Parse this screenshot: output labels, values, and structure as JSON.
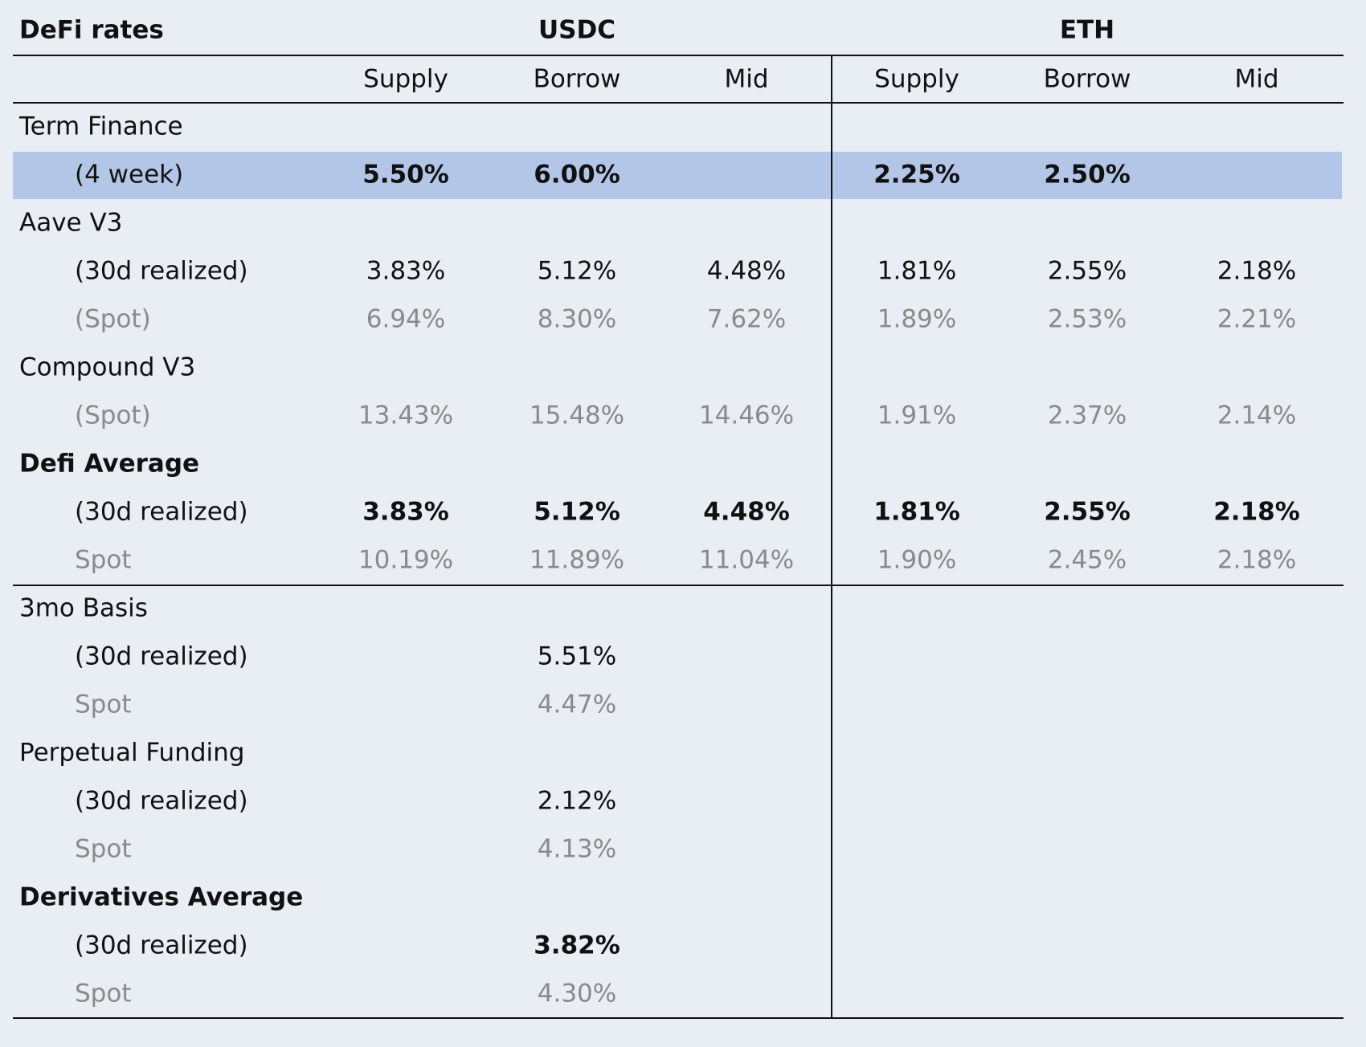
{
  "header": {
    "title": "DeFi rates",
    "groups": [
      "USDC",
      "ETH"
    ],
    "columns": [
      "Supply",
      "Borrow",
      "Mid",
      "Supply",
      "Borrow",
      "Mid"
    ]
  },
  "table": {
    "rows": [
      {
        "label": "Term Finance",
        "style": "heading",
        "cells": [
          null,
          null,
          null,
          null,
          null,
          null
        ]
      },
      {
        "label": "(4 week)",
        "style": "highlight",
        "cells": [
          "5.50%",
          "6.00%",
          null,
          "2.25%",
          "2.50%",
          null
        ]
      },
      {
        "label": "Aave V3",
        "style": "heading",
        "cells": [
          null,
          null,
          null,
          null,
          null,
          null
        ]
      },
      {
        "label": "(30d realized)",
        "style": "detail",
        "cells": [
          "3.83%",
          "5.12%",
          "4.48%",
          "1.81%",
          "2.55%",
          "2.18%"
        ]
      },
      {
        "label": "(Spot)",
        "style": "spot",
        "cells": [
          "6.94%",
          "8.30%",
          "7.62%",
          "1.89%",
          "2.53%",
          "2.21%"
        ]
      },
      {
        "label": "Compound V3",
        "style": "heading",
        "cells": [
          null,
          null,
          null,
          null,
          null,
          null
        ]
      },
      {
        "label": "(Spot)",
        "style": "spot",
        "cells": [
          "13.43%",
          "15.48%",
          "14.46%",
          "1.91%",
          "2.37%",
          "2.14%"
        ]
      },
      {
        "label": "Defi Average",
        "style": "heading-bold",
        "cells": [
          null,
          null,
          null,
          null,
          null,
          null
        ]
      },
      {
        "label": "(30d realized)",
        "style": "detail-bold",
        "cells": [
          "3.83%",
          "5.12%",
          "4.48%",
          "1.81%",
          "2.55%",
          "2.18%"
        ]
      },
      {
        "label": "Spot",
        "style": "spot",
        "rule_below": true,
        "cells": [
          "10.19%",
          "11.89%",
          "11.04%",
          "1.90%",
          "2.45%",
          "2.18%"
        ]
      },
      {
        "label": "3mo Basis",
        "style": "heading",
        "cells": [
          null,
          null,
          null,
          null,
          null,
          null
        ]
      },
      {
        "label": "(30d realized)",
        "style": "detail",
        "cells": [
          null,
          "5.51%",
          null,
          null,
          null,
          null
        ]
      },
      {
        "label": "Spot",
        "style": "spot",
        "cells": [
          null,
          "4.47%",
          null,
          null,
          null,
          null
        ]
      },
      {
        "label": "Perpetual Funding",
        "style": "heading",
        "cells": [
          null,
          null,
          null,
          null,
          null,
          null
        ]
      },
      {
        "label": "(30d realized)",
        "style": "detail",
        "cells": [
          null,
          "2.12%",
          null,
          null,
          null,
          null
        ]
      },
      {
        "label": "Spot",
        "style": "spot",
        "cells": [
          null,
          "4.13%",
          null,
          null,
          null,
          null
        ]
      },
      {
        "label": "Derivatives Average",
        "style": "heading-bold",
        "cells": [
          null,
          null,
          null,
          null,
          null,
          null
        ]
      },
      {
        "label": "(30d realized)",
        "style": "detail-bold",
        "cells": [
          null,
          "3.82%",
          null,
          null,
          null,
          null
        ]
      },
      {
        "label": "Spot",
        "style": "spot",
        "cells": [
          null,
          "4.30%",
          null,
          null,
          null,
          null
        ]
      }
    ]
  }
}
